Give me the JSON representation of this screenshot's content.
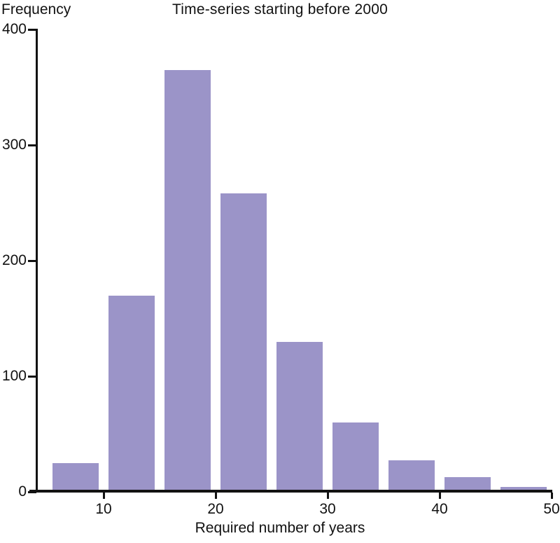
{
  "chart_data": {
    "type": "bar",
    "title": "Time-series starting before 2000",
    "xlabel": "Required number of years",
    "ylabel": "Frequency",
    "bins": [
      {
        "start": 5,
        "end": 10,
        "value": 25
      },
      {
        "start": 10,
        "end": 15,
        "value": 170
      },
      {
        "start": 15,
        "end": 20,
        "value": 365
      },
      {
        "start": 20,
        "end": 25,
        "value": 258
      },
      {
        "start": 25,
        "end": 30,
        "value": 130
      },
      {
        "start": 30,
        "end": 35,
        "value": 60
      },
      {
        "start": 35,
        "end": 40,
        "value": 27
      },
      {
        "start": 40,
        "end": 45,
        "value": 13
      },
      {
        "start": 45,
        "end": 50,
        "value": 4
      }
    ],
    "x_ticks": [
      10,
      20,
      30,
      40,
      50
    ],
    "y_ticks": [
      0,
      100,
      200,
      300,
      400
    ],
    "xlim": [
      4,
      50
    ],
    "ylim": [
      0,
      400
    ],
    "grid": false,
    "legend": false,
    "bar_color": "#9b94c8",
    "axis_color": "#121212"
  }
}
